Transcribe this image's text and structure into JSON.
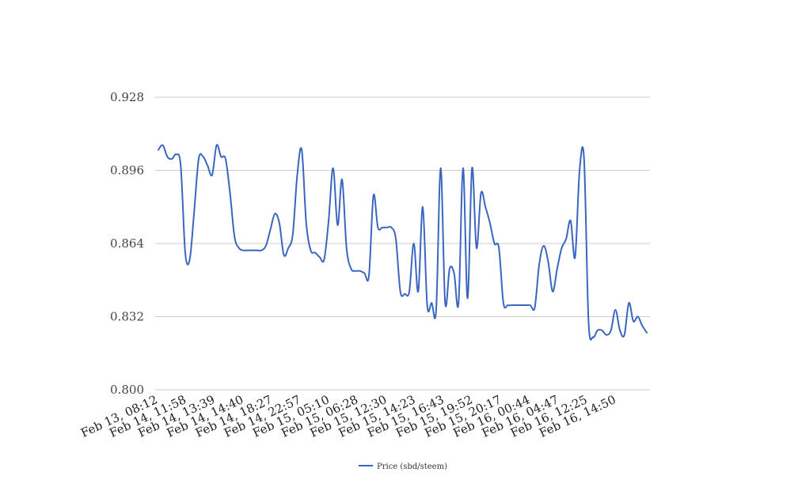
{
  "chart_data": {
    "type": "line",
    "title": "",
    "xlabel": "",
    "ylabel": "",
    "ylim": [
      0.8,
      0.928
    ],
    "yticks": [
      "0.800",
      "0.832",
      "0.864",
      "0.896",
      "0.928"
    ],
    "xticks": [
      "Feb 13, 08:12",
      "Feb 14, 11:58",
      "Feb 14, 13:39",
      "Feb 14, 14:40",
      "Feb 14, 18:27",
      "Feb 14, 22:57",
      "Feb 15, 05:10",
      "Feb 15, 06:28",
      "Feb 15, 12:30",
      "Feb 15, 14:23",
      "Feb 15, 16:43",
      "Feb 15, 19:52",
      "Feb 15, 20:17",
      "Feb 16, 00:44",
      "Feb 16, 04:47",
      "Feb 16, 12:25",
      "Feb 16, 14:50"
    ],
    "grid": true,
    "legend_position": "bottom-center",
    "colors": {
      "series": "#3a66c0",
      "grid": "#cccccc"
    },
    "series": [
      {
        "name": "Price (sbd/steem)",
        "values": [
          0.905,
          0.907,
          0.902,
          0.901,
          0.903,
          0.898,
          0.86,
          0.857,
          0.878,
          0.901,
          0.902,
          0.898,
          0.894,
          0.907,
          0.902,
          0.901,
          0.886,
          0.867,
          0.862,
          0.861,
          0.861,
          0.861,
          0.861,
          0.861,
          0.863,
          0.87,
          0.877,
          0.873,
          0.859,
          0.862,
          0.868,
          0.894,
          0.905,
          0.873,
          0.861,
          0.86,
          0.858,
          0.857,
          0.874,
          0.897,
          0.872,
          0.892,
          0.862,
          0.853,
          0.852,
          0.852,
          0.851,
          0.85,
          0.885,
          0.871,
          0.871,
          0.871,
          0.871,
          0.866,
          0.843,
          0.842,
          0.843,
          0.864,
          0.843,
          0.88,
          0.837,
          0.838,
          0.835,
          0.897,
          0.838,
          0.853,
          0.851,
          0.838,
          0.897,
          0.84,
          0.897,
          0.862,
          0.886,
          0.88,
          0.873,
          0.864,
          0.862,
          0.838,
          0.837,
          0.837,
          0.837,
          0.837,
          0.837,
          0.837,
          0.836,
          0.855,
          0.863,
          0.856,
          0.843,
          0.853,
          0.862,
          0.866,
          0.874,
          0.858,
          0.896,
          0.901,
          0.83,
          0.823,
          0.826,
          0.826,
          0.824,
          0.826,
          0.835,
          0.826,
          0.824,
          0.838,
          0.83,
          0.832,
          0.828,
          0.825
        ]
      }
    ]
  }
}
